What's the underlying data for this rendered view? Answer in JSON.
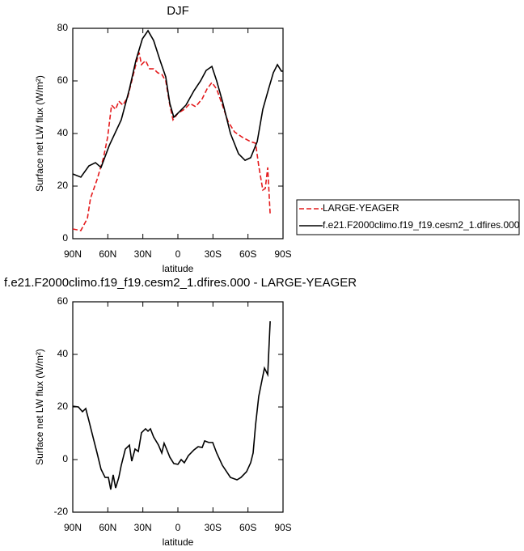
{
  "chart_data": [
    {
      "type": "line",
      "title": "DJF",
      "xlabel": "latitude",
      "ylabel": "Surface net LW flux (W/m²)",
      "xlim": [
        90,
        -90
      ],
      "xticks": [
        {
          "value": 90,
          "label": "90N"
        },
        {
          "value": 60,
          "label": "60N"
        },
        {
          "value": 30,
          "label": "30N"
        },
        0,
        {
          "value": -30,
          "label": "30S"
        },
        {
          "value": -60,
          "label": "60S"
        },
        {
          "value": -90,
          "label": "90S"
        }
      ],
      "ylim": [
        0,
        80
      ],
      "yticks": [
        0,
        20,
        40,
        60,
        80
      ],
      "legend": "right",
      "series": [
        {
          "name": "LARGE-YEAGER",
          "color": "#e41a1c",
          "dash": true,
          "x": [
            90,
            83.1,
            77.5,
            74.8,
            69.2,
            63.7,
            60.2,
            56.8,
            53.3,
            50.6,
            47.1,
            43,
            39.5,
            36,
            33.2,
            31.2,
            27.7,
            24.2,
            20.8,
            17.3,
            13.8,
            10.4,
            6.9,
            4.2,
            0,
            -5.5,
            -10.4,
            -15.2,
            -20.8,
            -24.9,
            -29.1,
            -33.2,
            -38.1,
            -42.9,
            -48.5,
            -55.4,
            -62.3,
            -66.5,
            -69.2,
            -72.7,
            -74.8,
            -76.9,
            -79
          ],
          "values": [
            3.7,
            3.1,
            7.7,
            15.4,
            22.5,
            30.8,
            38.5,
            50.8,
            49.2,
            52.3,
            50.8,
            53.8,
            60,
            66.2,
            70.8,
            66.2,
            67.7,
            64.6,
            64.6,
            63.1,
            62.5,
            60,
            50.8,
            45.2,
            47.7,
            49.2,
            51.4,
            50.2,
            53.2,
            56.9,
            59.4,
            56.9,
            50.8,
            44.6,
            40.6,
            38.5,
            36.9,
            36.3,
            27.7,
            18.5,
            19.1,
            27.1,
            9.2
          ]
        },
        {
          "name": "f.e21.F2000climo.f19_f19.cesm2_1.dfires.000",
          "color": "#000000",
          "dash": false,
          "x": [
            90,
            83.1,
            76.2,
            70.6,
            65.8,
            58.8,
            48.5,
            41.5,
            36,
            30.4,
            25.6,
            20.8,
            15.2,
            10.4,
            6.9,
            3.5,
            0,
            -6.9,
            -13.8,
            -19.4,
            -24.2,
            -29.1,
            -33.2,
            -38.1,
            -45,
            -51.9,
            -57.5,
            -62.3,
            -67.9,
            -72.7,
            -77.6,
            -81.7,
            -85.2,
            -88.6,
            -90
          ],
          "values": [
            24.6,
            23.4,
            27.7,
            28.9,
            27.1,
            35.4,
            45.2,
            56.9,
            67.7,
            76,
            79.1,
            75.4,
            67.7,
            61.5,
            51.4,
            46.2,
            47.7,
            50.8,
            56.3,
            60,
            64,
            65.5,
            60,
            52.3,
            40,
            32.3,
            29.8,
            30.8,
            36.9,
            49.2,
            56.9,
            63.1,
            66.2,
            63.7,
            63.7
          ]
        }
      ]
    },
    {
      "type": "line",
      "title": "f.e21.F2000climo.f19_f19.cesm2_1.dfires.000 - LARGE-YEAGER",
      "xlabel": "latitude",
      "ylabel": "Surface net LW flux (W/m²)",
      "xlim": [
        90,
        -90
      ],
      "xticks": [
        {
          "value": 90,
          "label": "90N"
        },
        {
          "value": 60,
          "label": "60N"
        },
        {
          "value": 30,
          "label": "30N"
        },
        0,
        {
          "value": -30,
          "label": "30S"
        },
        {
          "value": -60,
          "label": "60S"
        },
        {
          "value": -90,
          "label": "90S"
        }
      ],
      "ylim": [
        -20,
        60
      ],
      "yticks": [
        -20,
        0,
        20,
        40,
        60
      ],
      "color": "#000000",
      "x": [
        90,
        85.2,
        81.7,
        78.9,
        76.2,
        72.7,
        69.2,
        65.8,
        62.3,
        59.5,
        57.5,
        55.4,
        53.3,
        50.6,
        48.5,
        45,
        41.5,
        39.5,
        36.7,
        33.9,
        31.2,
        27.7,
        25.6,
        23.5,
        20.8,
        16.6,
        13.8,
        11.8,
        9.7,
        6.9,
        3.5,
        0,
        -2.8,
        -5.5,
        -9,
        -13.8,
        -17.3,
        -20.8,
        -22.9,
        -26.4,
        -29.8,
        -33.2,
        -38.1,
        -45,
        -50.6,
        -54,
        -58.8,
        -62.3,
        -64.4,
        -66.5,
        -69.2,
        -72,
        -74.1,
        -76.9,
        -79
      ],
      "values": [
        20.3,
        20,
        18.2,
        19.4,
        14.8,
        8.6,
        2.5,
        -3.7,
        -6.8,
        -6.8,
        -11.4,
        -5.8,
        -10.8,
        -6.8,
        -2.2,
        4,
        5.5,
        -0.6,
        4,
        3.1,
        10.2,
        11.7,
        10.8,
        11.7,
        8.6,
        5.5,
        2.5,
        6.2,
        4,
        0.9,
        -1.5,
        -1.8,
        0,
        -1.2,
        1.5,
        3.7,
        4.9,
        4.6,
        7.1,
        6.5,
        6.5,
        2.5,
        -2.2,
        -6.8,
        -7.7,
        -6.8,
        -4.6,
        -1.2,
        2.5,
        13.2,
        24,
        30.2,
        34.8,
        32.3,
        52.6
      ]
    }
  ]
}
